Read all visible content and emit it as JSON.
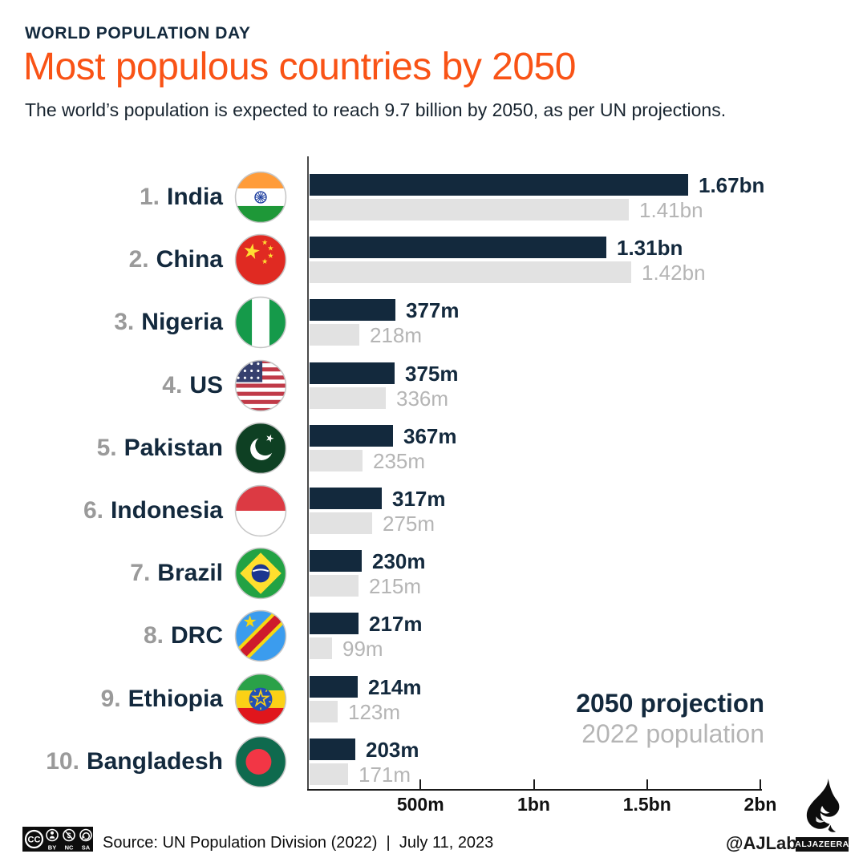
{
  "header": {
    "kicker": "WORLD POPULATION DAY",
    "title": "Most populous countries by 2050",
    "subtitle": "The world’s population is expected to reach 9.7 billion by 2050, as per UN projections."
  },
  "theme": {
    "accent_orange": "#f95316",
    "navy": "#13293d",
    "gray_bar": "#e2e2e2",
    "gray_text": "#b5b5b5",
    "rank_gray": "#9a9a9a"
  },
  "chart_data": {
    "type": "bar",
    "orientation": "horizontal",
    "title": "Most populous countries by 2050",
    "categories": [
      "India",
      "China",
      "Nigeria",
      "US",
      "Pakistan",
      "Indonesia",
      "Brazil",
      "DRC",
      "Ethiopia",
      "Bangladesh"
    ],
    "ranks": [
      "1.",
      "2.",
      "3.",
      "4.",
      "5.",
      "6.",
      "7.",
      "8.",
      "9.",
      "10."
    ],
    "flags": [
      "india-flag-icon",
      "china-flag-icon",
      "nigeria-flag-icon",
      "us-flag-icon",
      "pakistan-flag-icon",
      "indonesia-flag-icon",
      "brazil-flag-icon",
      "drc-flag-icon",
      "ethiopia-flag-icon",
      "bangladesh-flag-icon"
    ],
    "series": [
      {
        "name": "2050 projection",
        "values_millions": [
          1670,
          1310,
          377,
          375,
          367,
          317,
          230,
          217,
          214,
          203
        ],
        "labels": [
          "1.67bn",
          "1.31bn",
          "377m",
          "375m",
          "367m",
          "317m",
          "230m",
          "217m",
          "214m",
          "203m"
        ],
        "bar_color": "#13293d",
        "label_color": "#13293d"
      },
      {
        "name": "2022 population",
        "values_millions": [
          1410,
          1420,
          218,
          336,
          235,
          275,
          215,
          99,
          123,
          171
        ],
        "labels": [
          "1.41bn",
          "1.42bn",
          "218m",
          "336m",
          "235m",
          "275m",
          "215m",
          "99m",
          "123m",
          "171m"
        ],
        "bar_color": "#e2e2e2",
        "label_color": "#b5b5b5"
      }
    ],
    "x_axis": {
      "min_millions": 0,
      "max_millions": 2000,
      "ticks": [
        {
          "label": "500m",
          "value_millions": 500
        },
        {
          "label": "1bn",
          "value_millions": 1000
        },
        {
          "label": "1.5bn",
          "value_millions": 1500
        },
        {
          "label": "2bn",
          "value_millions": 2000
        }
      ]
    },
    "legend_position": "bottom-right",
    "grid": false
  },
  "footer": {
    "cc": {
      "cc": "CC",
      "by": "BY",
      "nc": "NC",
      "sa": "SA"
    },
    "source": "Source: UN Population Division (2022)  |  July 11, 2023",
    "credit": "@AJLabs",
    "brand": "ALJAZEERA"
  }
}
